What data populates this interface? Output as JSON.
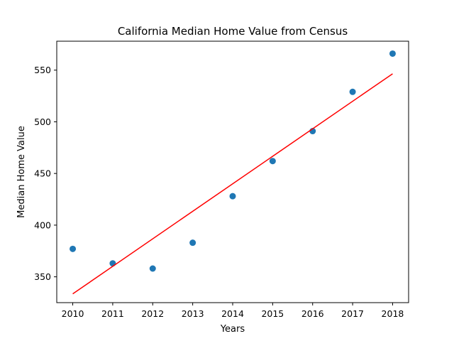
{
  "chart_data": {
    "type": "scatter",
    "title": "California Median Home Value from Census",
    "xlabel": "Years",
    "ylabel": "Median Home Value",
    "x_ticks": [
      "2010",
      "2011",
      "2012",
      "2013",
      "2014",
      "2015",
      "2016",
      "2017",
      "2018"
    ],
    "y_ticks": [
      "350",
      "400",
      "450",
      "500",
      "550"
    ],
    "xlim": [
      2009.6,
      2018.4
    ],
    "ylim": [
      325,
      578
    ],
    "grid": false,
    "series": [
      {
        "type": "scatter",
        "color": "#1f77b4",
        "x": [
          2010,
          2011,
          2012,
          2013,
          2014,
          2015,
          2016,
          2017,
          2018
        ],
        "y": [
          377,
          363,
          358,
          383,
          428,
          462,
          491,
          529,
          566
        ]
      },
      {
        "type": "line",
        "color": "#ff0000",
        "x": [
          2010,
          2018
        ],
        "y": [
          333.5,
          546.5
        ]
      }
    ]
  }
}
